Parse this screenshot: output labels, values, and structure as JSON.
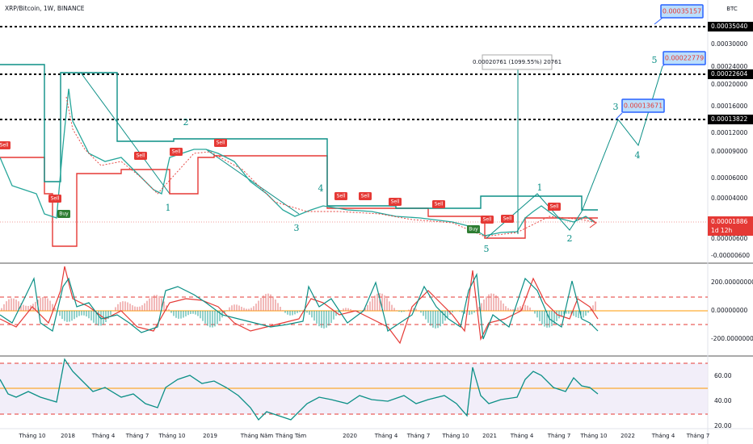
{
  "header": {
    "title": "XRP/Bitcoin, 1W, BINANCE",
    "currency": "BTC"
  },
  "price_axis": {
    "ticks": [
      "0.00030000",
      "0.00024000",
      "0.00020000",
      "0.00016000",
      "0.00012000",
      "0.00009000",
      "0.00006000",
      "0.00004000",
      "0.00000600",
      "-0.00000600"
    ],
    "levels": [
      "0.00035040",
      "0.00022604",
      "0.00013822"
    ],
    "current": {
      "price": "0.00001886",
      "countdown": "1d 12h"
    }
  },
  "targets": [
    "0.00035157",
    "0.00022779",
    "0.00013671"
  ],
  "measure": "0.00020761 (1099.55%) 20761",
  "waves": [
    "2",
    "1",
    "4",
    "3",
    "1",
    "2",
    "5",
    "5",
    "3",
    "4"
  ],
  "signals": [
    "Sell",
    "Sell",
    "Sell",
    "Sell",
    "Sell",
    "Sell",
    "Sell",
    "Sell",
    "Sell",
    "Sell",
    "Sell",
    "Sell",
    "Buy",
    "Buy"
  ],
  "cci_axis": [
    "200.00000000",
    "0.00000000",
    "-200.00000000"
  ],
  "rsi_axis": [
    "60.00",
    "40.00",
    "20.00"
  ],
  "time_axis": [
    "Tháng 10",
    "2018",
    "Tháng 4",
    "Tháng 7",
    "Tháng 10",
    "2019",
    "Tháng Năm",
    "Tháng Tám",
    "2020",
    "Tháng 4",
    "Tháng 7",
    "Tháng 10",
    "2021",
    "Tháng 4",
    "Tháng 7",
    "Tháng 10",
    "2022",
    "Tháng 4",
    "Tháng 7"
  ]
}
